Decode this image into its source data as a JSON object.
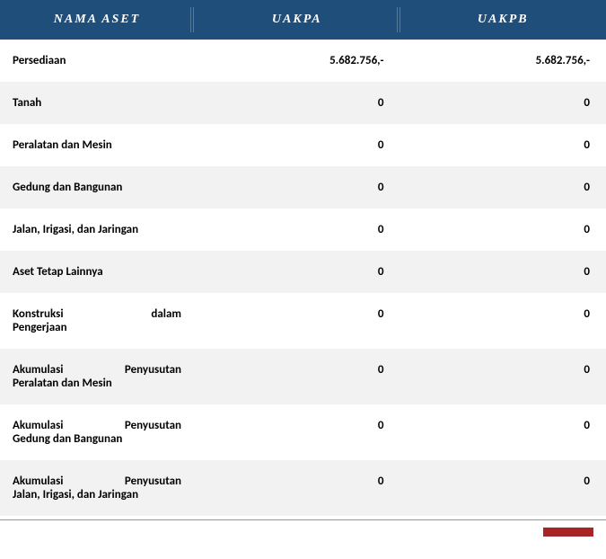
{
  "header": {
    "col1": "NAMA ASET",
    "col2": "UAKPA",
    "col3": "UAKPB"
  },
  "rows": [
    {
      "name": "Persediaan",
      "uakpa": "5.682.756,-",
      "uakpb": "5.682.756,-",
      "twoLine": false
    },
    {
      "name": "Tanah",
      "uakpa": "0",
      "uakpb": "0",
      "twoLine": false
    },
    {
      "name": "Peralatan dan Mesin",
      "uakpa": "0",
      "uakpb": "0",
      "twoLine": false
    },
    {
      "name": "Gedung dan Bangunan",
      "uakpa": "0",
      "uakpb": "0",
      "twoLine": false
    },
    {
      "name": "Jalan, Irigasi, dan Jaringan",
      "uakpa": "0",
      "uakpb": "0",
      "twoLine": false
    },
    {
      "name": "Aset Tetap Lainnya",
      "uakpa": "0",
      "uakpb": "0",
      "twoLine": false
    },
    {
      "name": "Konstruksi dalam",
      "name2": "Pengerjaan",
      "uakpa": "0",
      "uakpb": "0",
      "twoLine": true
    },
    {
      "name": "Akumulasi Penyusutan",
      "name2": "Peralatan dan Mesin",
      "uakpa": "0",
      "uakpb": "0",
      "twoLine": true
    },
    {
      "name": "Akumulasi Penyusutan",
      "name2": "Gedung dan Bangunan",
      "uakpa": "0",
      "uakpb": "0",
      "twoLine": true
    },
    {
      "name": "Akumulasi Penyusutan",
      "name2": "Jalan, Irigasi, dan Jaringan",
      "uakpa": "0",
      "uakpb": "0",
      "twoLine": true
    }
  ],
  "styling": {
    "header_bg": "#1f4e7a",
    "header_text_color": "#ffffff",
    "row_odd_bg": "#ffffff",
    "row_even_bg": "#f2f2f2",
    "text_color": "#000000",
    "red_tab_color": "#a62626",
    "header_font_family": "Georgia",
    "header_font_style": "italic",
    "header_font_size": 14,
    "body_font_size": 13,
    "body_font_weight": "bold"
  }
}
